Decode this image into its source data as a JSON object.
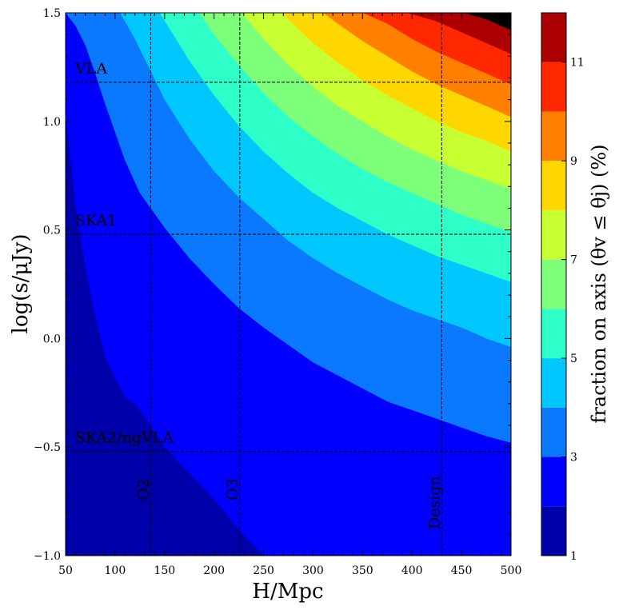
{
  "chart_data": {
    "type": "filled-contour",
    "xlabel": "H/Mpc",
    "ylabel": "log(s/μJy)",
    "xlim": [
      50,
      500
    ],
    "ylim": [
      -1.0,
      1.5
    ],
    "x_ticks": [
      50,
      100,
      150,
      200,
      250,
      300,
      350,
      400,
      450,
      500
    ],
    "y_ticks": [
      -1.0,
      -0.5,
      0.0,
      0.5,
      1.0,
      1.5
    ],
    "x_tick_labels": [
      "50",
      "100",
      "150",
      "200",
      "250",
      "300",
      "350",
      "400",
      "450",
      "500"
    ],
    "y_tick_labels": [
      "−1.0",
      "−0.5",
      "0.0",
      "0.5",
      "1.0",
      "1.5"
    ],
    "colorbar": {
      "label": "fraction on axis (θv ≤ θj) (%)",
      "levels": [
        1,
        2,
        3,
        4,
        5,
        6,
        7,
        8,
        9,
        10,
        11,
        12
      ],
      "tick_values": [
        1,
        3,
        5,
        7,
        9,
        11
      ],
      "tick_labels": [
        "1",
        "3",
        "5",
        "7",
        "9",
        "11"
      ],
      "colors": [
        "#0000aa",
        "#0000ff",
        "#0a78ff",
        "#00c8ff",
        "#2effc8",
        "#7dff7a",
        "#c8ff32",
        "#ffd700",
        "#ff8000",
        "#ff2800",
        "#aa0000"
      ]
    },
    "contour_boundaries": [
      {
        "level": 2,
        "points": [
          [
            50,
            1.05
          ],
          [
            60,
            0.62
          ],
          [
            70,
            0.33
          ],
          [
            80,
            0.1
          ],
          [
            90,
            -0.08
          ],
          [
            100,
            -0.18
          ],
          [
            110,
            -0.27
          ],
          [
            120,
            -0.3
          ],
          [
            130,
            -0.36
          ],
          [
            150,
            -0.5
          ],
          [
            175,
            -0.62
          ],
          [
            200,
            -0.74
          ],
          [
            225,
            -0.88
          ],
          [
            250,
            -1.0
          ]
        ]
      },
      {
        "level": 3,
        "points": [
          [
            50,
            1.5
          ],
          [
            60,
            1.44
          ],
          [
            70,
            1.35
          ],
          [
            80,
            1.22
          ],
          [
            90,
            1.08
          ],
          [
            100,
            0.95
          ],
          [
            110,
            0.82
          ],
          [
            125,
            0.67
          ],
          [
            150,
            0.51
          ],
          [
            175,
            0.37
          ],
          [
            200,
            0.25
          ],
          [
            225,
            0.14
          ],
          [
            250,
            0.05
          ],
          [
            275,
            -0.03
          ],
          [
            300,
            -0.11
          ],
          [
            325,
            -0.17
          ],
          [
            350,
            -0.23
          ],
          [
            375,
            -0.29
          ],
          [
            400,
            -0.33
          ],
          [
            425,
            -0.37
          ],
          [
            450,
            -0.41
          ],
          [
            475,
            -0.45
          ],
          [
            500,
            -0.48
          ]
        ]
      },
      {
        "level": 4,
        "points": [
          [
            105,
            1.5
          ],
          [
            120,
            1.38
          ],
          [
            135,
            1.24
          ],
          [
            150,
            1.1
          ],
          [
            175,
            0.92
          ],
          [
            200,
            0.77
          ],
          [
            225,
            0.65
          ],
          [
            250,
            0.55
          ],
          [
            275,
            0.45
          ],
          [
            300,
            0.37
          ],
          [
            325,
            0.3
          ],
          [
            350,
            0.24
          ],
          [
            375,
            0.18
          ],
          [
            400,
            0.13
          ],
          [
            425,
            0.09
          ],
          [
            450,
            0.05
          ],
          [
            475,
            0.0
          ],
          [
            500,
            -0.04
          ]
        ]
      },
      {
        "level": 5,
        "points": [
          [
            145,
            1.5
          ],
          [
            160,
            1.39
          ],
          [
            175,
            1.28
          ],
          [
            200,
            1.12
          ],
          [
            225,
            0.98
          ],
          [
            250,
            0.86
          ],
          [
            275,
            0.76
          ],
          [
            300,
            0.67
          ],
          [
            325,
            0.6
          ],
          [
            350,
            0.54
          ],
          [
            375,
            0.48
          ],
          [
            400,
            0.43
          ],
          [
            425,
            0.38
          ],
          [
            450,
            0.34
          ],
          [
            475,
            0.3
          ],
          [
            500,
            0.26
          ]
        ]
      },
      {
        "level": 6,
        "points": [
          [
            185,
            1.5
          ],
          [
            200,
            1.4
          ],
          [
            225,
            1.26
          ],
          [
            250,
            1.13
          ],
          [
            275,
            1.02
          ],
          [
            300,
            0.93
          ],
          [
            325,
            0.85
          ],
          [
            350,
            0.78
          ],
          [
            375,
            0.72
          ],
          [
            400,
            0.67
          ],
          [
            425,
            0.62
          ],
          [
            450,
            0.57
          ],
          [
            475,
            0.53
          ],
          [
            500,
            0.49
          ]
        ]
      },
      {
        "level": 7,
        "points": [
          [
            228,
            1.5
          ],
          [
            250,
            1.38
          ],
          [
            275,
            1.26
          ],
          [
            300,
            1.16
          ],
          [
            325,
            1.07
          ],
          [
            350,
            1.0
          ],
          [
            375,
            0.93
          ],
          [
            400,
            0.87
          ],
          [
            425,
            0.82
          ],
          [
            450,
            0.77
          ],
          [
            475,
            0.73
          ],
          [
            500,
            0.69
          ]
        ]
      },
      {
        "level": 8,
        "points": [
          [
            268,
            1.5
          ],
          [
            300,
            1.36
          ],
          [
            325,
            1.27
          ],
          [
            350,
            1.19
          ],
          [
            375,
            1.12
          ],
          [
            400,
            1.06
          ],
          [
            425,
            1.0
          ],
          [
            450,
            0.95
          ],
          [
            475,
            0.91
          ],
          [
            500,
            0.86
          ]
        ]
      },
      {
        "level": 9,
        "points": [
          [
            310,
            1.5
          ],
          [
            325,
            1.45
          ],
          [
            350,
            1.37
          ],
          [
            375,
            1.3
          ],
          [
            400,
            1.23
          ],
          [
            425,
            1.17
          ],
          [
            450,
            1.12
          ],
          [
            475,
            1.07
          ],
          [
            500,
            1.02
          ]
        ]
      },
      {
        "level": 10,
        "points": [
          [
            350,
            1.5
          ],
          [
            375,
            1.45
          ],
          [
            400,
            1.38
          ],
          [
            425,
            1.32
          ],
          [
            450,
            1.27
          ],
          [
            475,
            1.22
          ],
          [
            500,
            1.17
          ]
        ]
      },
      {
        "level": 11,
        "points": [
          [
            395,
            1.5
          ],
          [
            425,
            1.46
          ],
          [
            450,
            1.41
          ],
          [
            475,
            1.36
          ],
          [
            500,
            1.31
          ]
        ]
      },
      {
        "level": 12,
        "points": [
          [
            452,
            1.5
          ],
          [
            475,
            1.47
          ],
          [
            500,
            1.42
          ]
        ]
      }
    ],
    "hlines": [
      {
        "label": "VLA",
        "y": 1.18
      },
      {
        "label": "SKA1",
        "y": 0.48
      },
      {
        "label": "SKA2/ngVLA",
        "y": -0.52
      }
    ],
    "vlines": [
      {
        "label": "O2",
        "x": 136
      },
      {
        "label": "O3",
        "x": 226
      },
      {
        "label": "Design",
        "x": 430
      }
    ],
    "grid": false,
    "legend": "none"
  }
}
